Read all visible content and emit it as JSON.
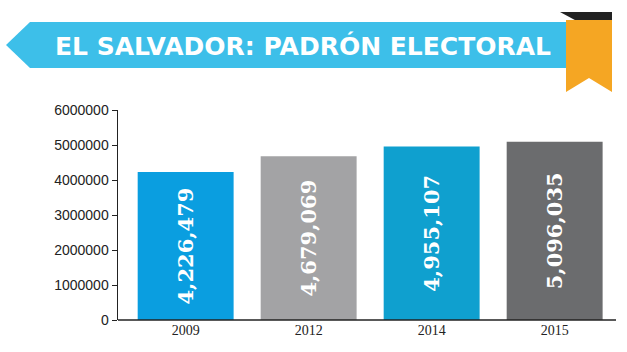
{
  "chart_data": {
    "type": "bar",
    "title": "EL SALVADOR: PADRÓN ELECTORAL",
    "categories": [
      "2009",
      "2012",
      "2014",
      "2015"
    ],
    "values": [
      4226479,
      4679069,
      4955107,
      5096035
    ],
    "value_labels": [
      "4,226,479",
      "4,679,069",
      "4,955,107",
      "5,096,035"
    ],
    "colors": [
      "#0a9ee0",
      "#a3a3a5",
      "#0fa0cf",
      "#6b6c6e"
    ],
    "ylim": [
      0,
      6000000
    ],
    "yticks": [
      0,
      1000000,
      2000000,
      3000000,
      4000000,
      5000000,
      6000000
    ],
    "data_labels": true,
    "grid": false
  }
}
